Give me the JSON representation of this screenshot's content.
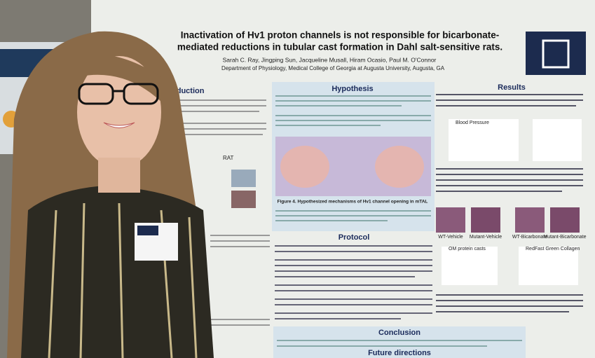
{
  "poster": {
    "title_line1": "Inactivation of Hv1 proton channels is not responsible for bicarbonate-",
    "title_line2": "mediated reductions in tubular cast formation in Dahl salt-sensitive rats.",
    "authors": "Sarah C. Ray, Jingping Sun, Jacqueline Musall, Hiram Ocasio, Paul M. O'Connor",
    "affiliation": "Department of Physiology, Medical College of Georgia at Augusta University, Augusta, GA",
    "sections": {
      "introduction": "oduction",
      "hypothesis": "Hypothesis",
      "results": "Results",
      "protocol": "Protocol",
      "conclusion": "Conclusion",
      "future": "Future directions"
    },
    "figure4_caption": "Figure 4. Hypothesized mechanisms of Hv1 channel opening in mTAL",
    "rat_label": "RAT",
    "blood_pressure_label": "Blood Pressure",
    "om_casts_label": "OM protein casts",
    "collagen_label": "RedFast Green Collagen",
    "image_labels": [
      "WT-Vehicle",
      "Mutant-Vehicle",
      "WT-Bicarbonate",
      "Mutant-Bicarbonate"
    ]
  }
}
